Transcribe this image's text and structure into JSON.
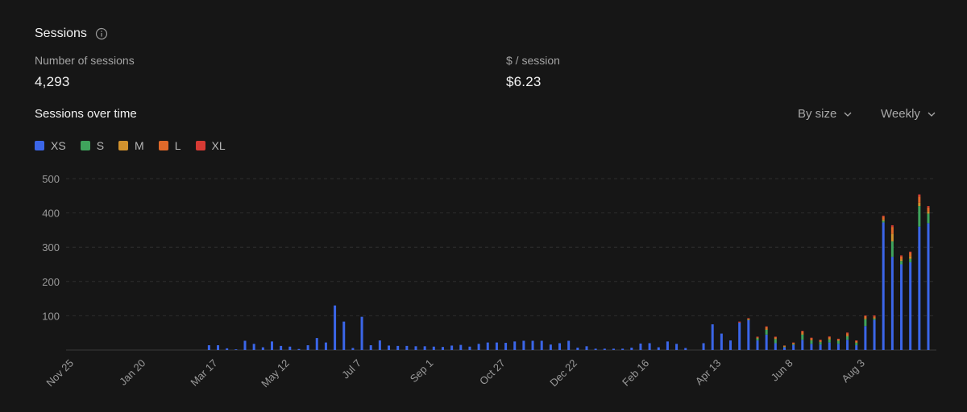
{
  "header": {
    "title": "Sessions",
    "info_icon": "info-circle-icon"
  },
  "metrics": [
    {
      "label": "Number of sessions",
      "value": "4,293"
    },
    {
      "label": "$ / session",
      "value": "$6.23"
    }
  ],
  "chart_section": {
    "title": "Sessions over time",
    "group_by": "By size",
    "interval": "Weekly"
  },
  "colors": {
    "XS": "#3b66e8",
    "S": "#3fa35c",
    "M": "#d1922e",
    "L": "#e0692a",
    "XL": "#d63a34"
  },
  "chart_data": {
    "type": "bar",
    "stacked": true,
    "series_names": [
      "XS",
      "S",
      "M",
      "L",
      "XL"
    ],
    "x_tick_labels": [
      "Nov 25",
      "Jan 20",
      "Mar 17",
      "May 12",
      "Jul 7",
      "Sep 1",
      "Oct 27",
      "Dec 22",
      "Feb 16",
      "Apr 13",
      "Jun 8",
      "Aug 3"
    ],
    "y_ticks": [
      100,
      200,
      300,
      400,
      500
    ],
    "ylim": [
      0,
      500
    ],
    "grid": true,
    "legend_position": "top-left",
    "bars": [
      [
        0,
        0,
        0,
        0,
        0
      ],
      [
        0,
        0,
        0,
        0,
        0
      ],
      [
        0,
        0,
        0,
        0,
        0
      ],
      [
        0,
        0,
        0,
        0,
        0
      ],
      [
        0,
        0,
        0,
        0,
        0
      ],
      [
        0,
        0,
        0,
        0,
        0
      ],
      [
        0,
        0,
        0,
        0,
        0
      ],
      [
        0,
        0,
        0,
        0,
        0
      ],
      [
        0,
        0,
        0,
        0,
        0
      ],
      [
        0,
        0,
        0,
        0,
        0
      ],
      [
        0,
        0,
        0,
        0,
        0
      ],
      [
        0,
        0,
        0,
        0,
        0
      ],
      [
        0,
        0,
        0,
        0,
        0
      ],
      [
        0,
        0,
        0,
        0,
        0
      ],
      [
        0,
        0,
        0,
        0,
        0
      ],
      [
        14,
        0,
        0,
        0,
        0
      ],
      [
        14,
        0,
        0,
        0,
        0
      ],
      [
        5,
        0,
        0,
        0,
        0
      ],
      [
        2,
        0,
        0,
        0,
        0
      ],
      [
        27,
        0,
        0,
        0,
        0
      ],
      [
        18,
        0,
        0,
        0,
        0
      ],
      [
        8,
        0,
        0,
        0,
        0
      ],
      [
        25,
        0,
        0,
        0,
        0
      ],
      [
        12,
        0,
        0,
        0,
        0
      ],
      [
        10,
        0,
        0,
        0,
        0
      ],
      [
        3,
        0,
        0,
        0,
        0
      ],
      [
        14,
        0,
        0,
        0,
        0
      ],
      [
        35,
        0,
        0,
        0,
        0
      ],
      [
        22,
        0,
        0,
        0,
        0
      ],
      [
        130,
        0,
        0,
        0,
        0
      ],
      [
        83,
        0,
        0,
        0,
        0
      ],
      [
        6,
        0,
        0,
        0,
        0
      ],
      [
        97,
        0,
        0,
        0,
        0
      ],
      [
        14,
        0,
        0,
        0,
        0
      ],
      [
        28,
        0,
        0,
        0,
        0
      ],
      [
        13,
        0,
        0,
        0,
        0
      ],
      [
        12,
        0,
        0,
        0,
        0
      ],
      [
        12,
        0,
        0,
        0,
        0
      ],
      [
        11,
        0,
        0,
        0,
        0
      ],
      [
        11,
        0,
        0,
        0,
        0
      ],
      [
        10,
        0,
        0,
        0,
        0
      ],
      [
        9,
        0,
        0,
        0,
        0
      ],
      [
        13,
        0,
        0,
        0,
        0
      ],
      [
        15,
        0,
        0,
        0,
        0
      ],
      [
        10,
        0,
        0,
        0,
        0
      ],
      [
        18,
        0,
        0,
        0,
        0
      ],
      [
        22,
        0,
        0,
        0,
        0
      ],
      [
        22,
        0,
        0,
        0,
        0
      ],
      [
        21,
        0,
        0,
        0,
        0
      ],
      [
        25,
        0,
        0,
        0,
        0
      ],
      [
        27,
        0,
        0,
        0,
        0
      ],
      [
        27,
        0,
        0,
        0,
        0
      ],
      [
        27,
        0,
        0,
        0,
        0
      ],
      [
        16,
        0,
        0,
        0,
        0
      ],
      [
        20,
        0,
        0,
        0,
        0
      ],
      [
        27,
        0,
        0,
        0,
        0
      ],
      [
        7,
        0,
        0,
        0,
        0
      ],
      [
        11,
        0,
        0,
        0,
        0
      ],
      [
        4,
        0,
        0,
        0,
        0
      ],
      [
        4,
        0,
        0,
        0,
        0
      ],
      [
        4,
        0,
        0,
        0,
        0
      ],
      [
        4,
        0,
        0,
        0,
        0
      ],
      [
        7,
        0,
        0,
        0,
        0
      ],
      [
        19,
        0,
        0,
        0,
        0
      ],
      [
        20,
        0,
        0,
        0,
        0
      ],
      [
        8,
        0,
        0,
        0,
        0
      ],
      [
        25,
        0,
        0,
        0,
        0
      ],
      [
        18,
        0,
        0,
        0,
        0
      ],
      [
        6,
        0,
        0,
        0,
        0
      ],
      [
        0,
        0,
        0,
        0,
        0
      ],
      [
        20,
        0,
        0,
        0,
        0
      ],
      [
        75,
        0,
        0,
        0,
        0
      ],
      [
        48,
        0,
        0,
        0,
        0
      ],
      [
        28,
        0,
        0,
        0,
        0
      ],
      [
        80,
        0,
        0,
        0,
        3
      ],
      [
        88,
        1,
        1,
        2,
        1
      ],
      [
        28,
        6,
        2,
        2,
        1
      ],
      [
        45,
        14,
        3,
        5,
        2
      ],
      [
        20,
        12,
        2,
        4,
        1
      ],
      [
        8,
        2,
        1,
        2,
        0
      ],
      [
        15,
        3,
        1,
        2,
        1
      ],
      [
        30,
        15,
        3,
        6,
        2
      ],
      [
        18,
        10,
        2,
        5,
        1
      ],
      [
        16,
        7,
        2,
        4,
        1
      ],
      [
        22,
        9,
        3,
        4,
        2
      ],
      [
        18,
        9,
        2,
        3,
        1
      ],
      [
        30,
        10,
        3,
        6,
        2
      ],
      [
        14,
        7,
        2,
        4,
        1
      ],
      [
        70,
        20,
        3,
        6,
        2
      ],
      [
        88,
        4,
        2,
        4,
        3
      ],
      [
        372,
        5,
        4,
        8,
        3
      ],
      [
        272,
        45,
        22,
        20,
        5
      ],
      [
        250,
        10,
        5,
        8,
        3
      ],
      [
        256,
        10,
        8,
        10,
        3
      ],
      [
        360,
        60,
        10,
        18,
        6
      ],
      [
        370,
        28,
        6,
        12,
        4
      ]
    ]
  }
}
